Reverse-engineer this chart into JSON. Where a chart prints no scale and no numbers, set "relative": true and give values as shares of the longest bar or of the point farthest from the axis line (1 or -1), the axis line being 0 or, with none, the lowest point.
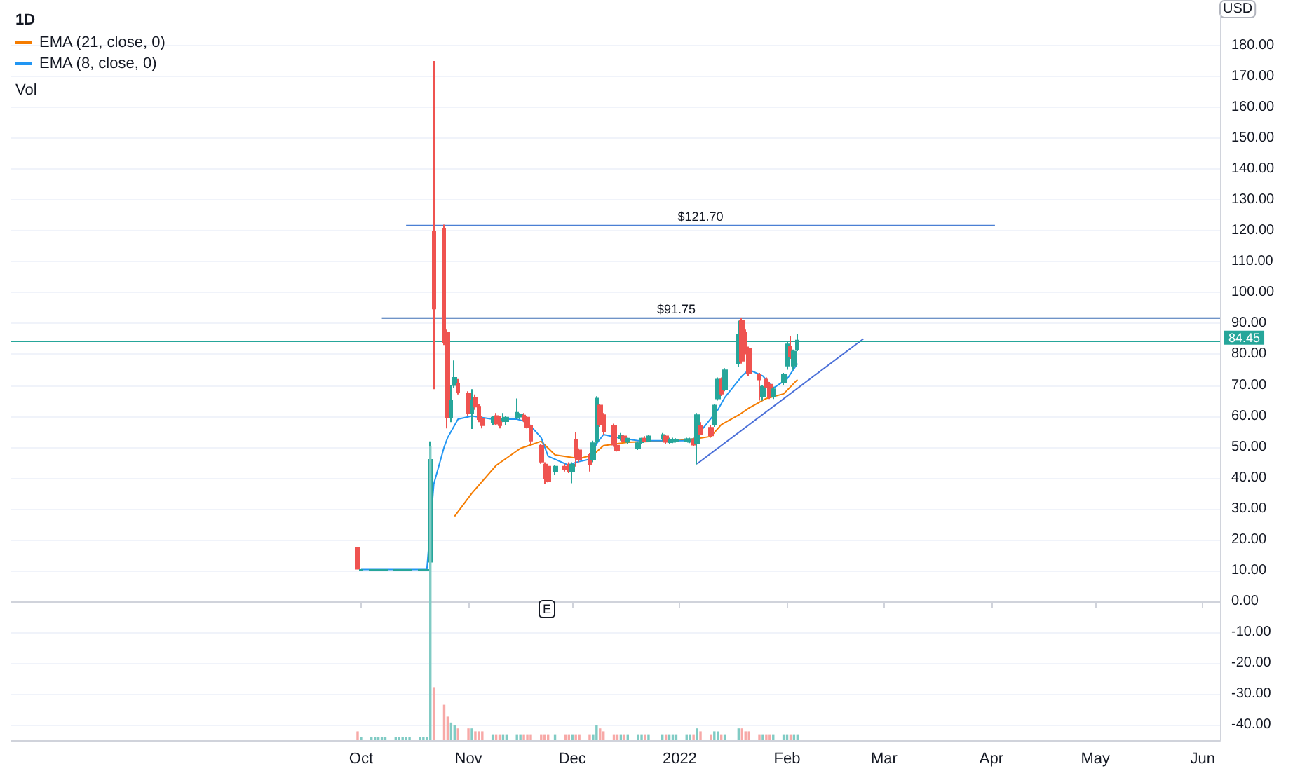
{
  "chart_data": [
    {
      "type": "candlestick",
      "title": "1D",
      "ylabel": "USD",
      "x": [
        "2021-09-30",
        "2021-10-01",
        "2021-10-04",
        "2021-10-05",
        "2021-10-06",
        "2021-10-07",
        "2021-10-08",
        "2021-10-11",
        "2021-10-12",
        "2021-10-13",
        "2021-10-14",
        "2021-10-15",
        "2021-10-18",
        "2021-10-19",
        "2021-10-20",
        "2021-10-21",
        "2021-10-22",
        "2021-10-25",
        "2021-10-26",
        "2021-10-27",
        "2021-10-28",
        "2021-10-29",
        "2021-11-01",
        "2021-11-02",
        "2021-11-03",
        "2021-11-04",
        "2021-11-05",
        "2021-11-08",
        "2021-11-09",
        "2021-11-10",
        "2021-11-11",
        "2021-11-12",
        "2021-11-15",
        "2021-11-16",
        "2021-11-17",
        "2021-11-18",
        "2021-11-19",
        "2021-11-22",
        "2021-11-23",
        "2021-11-24",
        "2021-11-26",
        "2021-11-29",
        "2021-11-30",
        "2021-12-01",
        "2021-12-02",
        "2021-12-03",
        "2021-12-06",
        "2021-12-07",
        "2021-12-08",
        "2021-12-09",
        "2021-12-10",
        "2021-12-13",
        "2021-12-14",
        "2021-12-15",
        "2021-12-16",
        "2021-12-17",
        "2021-12-20",
        "2021-12-21",
        "2021-12-22",
        "2021-12-23",
        "2021-12-27",
        "2021-12-28",
        "2021-12-29",
        "2021-12-30",
        "2021-12-31",
        "2022-01-03",
        "2022-01-04",
        "2022-01-05",
        "2022-01-06",
        "2022-01-07",
        "2022-01-10",
        "2022-01-11",
        "2022-01-12",
        "2022-01-13",
        "2022-01-14",
        "2022-01-18",
        "2022-01-19",
        "2022-01-20",
        "2022-01-21",
        "2022-01-24",
        "2022-01-25",
        "2022-01-26",
        "2022-01-27",
        "2022-01-28",
        "2022-01-31",
        "2022-02-01",
        "2022-02-02",
        "2022-02-03",
        "2022-02-04"
      ],
      "ohlc": [
        [
          17.2,
          17.6,
          10.4,
          10.5
        ],
        [
          10.1,
          10.4,
          10,
          10.2
        ],
        [
          10.1,
          10.4,
          10,
          10.2
        ],
        [
          10.1,
          10.4,
          10,
          10.2
        ],
        [
          10.1,
          10.4,
          10,
          10.2
        ],
        [
          10.1,
          10.4,
          10,
          10.2
        ],
        [
          10.1,
          10.4,
          10,
          10.2
        ],
        [
          10.1,
          10.4,
          10,
          10.2
        ],
        [
          10.1,
          10.4,
          10,
          10.2
        ],
        [
          10.1,
          10.4,
          10,
          10.2
        ],
        [
          10.1,
          10.4,
          10,
          10.2
        ],
        [
          10.1,
          10.4,
          10,
          10.2
        ],
        [
          10.1,
          10.4,
          10,
          10.2
        ],
        [
          10.1,
          10.4,
          10,
          10.2
        ],
        [
          10.1,
          10.4,
          10,
          10.2
        ],
        [
          12.8,
          51.8,
          10,
          45.8
        ],
        [
          119.6,
          175,
          68.7,
          94.8
        ],
        [
          120.5,
          122,
          83,
          83.8
        ],
        [
          87,
          88,
          56,
          59.5
        ],
        [
          59.5,
          70,
          58,
          65
        ],
        [
          70,
          78,
          69,
          72.4
        ],
        [
          70.5,
          72,
          67,
          67.8
        ],
        [
          67.3,
          68,
          60,
          61
        ],
        [
          61,
          68.7,
          55.8,
          64.9
        ],
        [
          66,
          67,
          62,
          63
        ],
        [
          63,
          64,
          58,
          59
        ],
        [
          59,
          60,
          56,
          57
        ],
        [
          58,
          60,
          57,
          59.5
        ],
        [
          60,
          61,
          57,
          57.5
        ],
        [
          59,
          60,
          56,
          57
        ],
        [
          58.5,
          61,
          58,
          59
        ],
        [
          58.3,
          60,
          57,
          59.5
        ],
        [
          59.5,
          65.7,
          59,
          61.1
        ],
        [
          59.8,
          61,
          59,
          60.5
        ],
        [
          60.2,
          61,
          58,
          58.7
        ],
        [
          59.5,
          60,
          56,
          56.5
        ],
        [
          56.7,
          57,
          51,
          52
        ],
        [
          50.4,
          51,
          44.5,
          45.2
        ],
        [
          44.3,
          45,
          38,
          39.7
        ],
        [
          43.6,
          44.5,
          38.5,
          39
        ],
        [
          42,
          44,
          41,
          43.6
        ],
        [
          43.6,
          44.5,
          42,
          42.8
        ],
        [
          44.3,
          45,
          41.5,
          42
        ],
        [
          42,
          45,
          38.2,
          44.3
        ],
        [
          52.3,
          54.9,
          43.6,
          46.6
        ],
        [
          48.9,
          49.5,
          45,
          45.8
        ],
        [
          47.4,
          48,
          42,
          44.3
        ],
        [
          45.8,
          52,
          45,
          51.2
        ],
        [
          51.9,
          66.4,
          51,
          65.7
        ],
        [
          63.4,
          64,
          56.5,
          57.2
        ],
        [
          60.3,
          61,
          54,
          54.9
        ],
        [
          56.8,
          57.5,
          50,
          50.7
        ],
        [
          50.4,
          51,
          48.5,
          48.9
        ],
        [
          52.7,
          54.5,
          52,
          53.7
        ],
        [
          53.4,
          54,
          51.5,
          51.9
        ],
        [
          51.6,
          53,
          51,
          52.7
        ],
        [
          49.6,
          51.5,
          49,
          51.2
        ],
        [
          51.5,
          53,
          51,
          52.7
        ],
        [
          52.7,
          53.5,
          51.5,
          51.9
        ],
        [
          51.9,
          54,
          51.5,
          53.4
        ],
        [
          52.7,
          54.5,
          52,
          53.9
        ],
        [
          53.4,
          54,
          51,
          51.6
        ],
        [
          51.5,
          53,
          51,
          52.4
        ],
        [
          51.6,
          53,
          51.2,
          52.3
        ],
        [
          51.9,
          52.8,
          51.5,
          52.4
        ],
        [
          51.9,
          53,
          51.5,
          52.5
        ],
        [
          51.6,
          53,
          51.2,
          52.5
        ],
        [
          52.3,
          53,
          50.2,
          50.7
        ],
        [
          51.2,
          61,
          44.3,
          60.3
        ],
        [
          56.8,
          58,
          53.8,
          54.2
        ],
        [
          56.2,
          57,
          53,
          53.7
        ],
        [
          57.2,
          64,
          56.5,
          63.4
        ],
        [
          65.7,
          72.5,
          65,
          71.8
        ],
        [
          71.8,
          72.5,
          66.5,
          67.2
        ],
        [
          68.7,
          75.5,
          68,
          74.8
        ],
        [
          77.1,
          90.9,
          76,
          86.3
        ],
        [
          90.9,
          91.75,
          77,
          77.9
        ],
        [
          87.1,
          88,
          80,
          80.9
        ],
        [
          81.7,
          82.5,
          73,
          74
        ],
        [
          73.3,
          74,
          65,
          71.8
        ],
        [
          66.4,
          70,
          65,
          69.5
        ],
        [
          71.8,
          72.5,
          69,
          69.5
        ],
        [
          70.2,
          71,
          65.5,
          66.4
        ],
        [
          66.4,
          69.5,
          65.5,
          68.7
        ],
        [
          71,
          74,
          70,
          73.3
        ],
        [
          76.3,
          84,
          75,
          83.2
        ],
        [
          82.4,
          86,
          78.5,
          79.4
        ],
        [
          76.3,
          81.5,
          75,
          80.9
        ],
        [
          81.7,
          86.5,
          81,
          84.45
        ]
      ],
      "series": [
        {
          "type": "line",
          "name": "EMA (21, close, 0)",
          "color": "#f57c00",
          "x": [
            "2021-10-28",
            "2021-11-02",
            "2021-11-09",
            "2021-11-16",
            "2021-11-22",
            "2021-11-26",
            "2021-12-03",
            "2021-12-07",
            "2021-12-10",
            "2021-12-17",
            "2021-12-31",
            "2022-01-06",
            "2022-01-10",
            "2022-01-13",
            "2022-01-18",
            "2022-01-21",
            "2022-01-26",
            "2022-01-31",
            "2022-02-04"
          ],
          "values": [
            27.5,
            35,
            44,
            49.5,
            51.8,
            47.4,
            46.2,
            47.4,
            50.4,
            51.5,
            52,
            52.7,
            53.4,
            57.2,
            60.3,
            62.6,
            65.7,
            67.2,
            71.8
          ]
        },
        {
          "type": "line",
          "name": "EMA (8, close, 0)",
          "color": "#2196f3",
          "x": [
            "2021-10-01",
            "2021-10-20",
            "2021-10-22",
            "2021-10-25",
            "2021-10-26",
            "2021-10-27",
            "2021-10-29",
            "2021-11-02",
            "2021-11-08",
            "2021-11-15",
            "2021-11-18",
            "2021-11-22",
            "2021-11-24",
            "2021-11-30",
            "2021-12-02",
            "2021-12-06",
            "2021-12-08",
            "2021-12-10",
            "2021-12-14",
            "2021-12-20",
            "2021-12-31",
            "2022-01-05",
            "2022-01-07",
            "2022-01-12",
            "2022-01-14",
            "2022-01-19",
            "2022-01-21",
            "2022-01-25",
            "2022-01-28",
            "2022-02-01",
            "2022-02-04"
          ],
          "values": [
            10.3,
            10.3,
            38,
            50,
            53,
            55,
            59,
            60,
            59,
            59,
            58,
            53,
            47,
            44,
            45,
            46,
            51,
            54,
            53,
            52,
            52,
            52,
            55,
            62,
            66,
            73,
            75,
            73,
            69,
            72,
            77
          ]
        },
        {
          "type": "line",
          "color": "#4a6fd8",
          "x": [
            "2022-01-06",
            "2022-02-23"
          ],
          "values": [
            44.5,
            85
          ]
        },
        {
          "type": "line",
          "color": "#4a7fd4",
          "x": [
            "2021-10-14",
            "2022-04-02"
          ],
          "values": [
            121.7,
            121.7
          ]
        },
        {
          "type": "line",
          "color": "#3f6fb5",
          "x": [
            "2021-10-07",
            "2022-06-06"
          ],
          "values": [
            91.75,
            91.75
          ]
        }
      ],
      "ref_lines": [
        {
          "axis": "y",
          "value": 84.45,
          "label": "84.45",
          "color": "#26a69a"
        }
      ],
      "annotations": [
        {
          "text": "$121.70",
          "x": "2022-01-07",
          "y": 121.7
        },
        {
          "text": "$91.75",
          "x": "2021-12-31",
          "y": 91.75
        },
        "E"
      ],
      "xlim": [
        "2021-06-22",
        "2022-06-06"
      ],
      "xticks": [
        {
          "value": "2021-10-01",
          "label": "Oct"
        },
        {
          "value": "2021-11-01",
          "label": "Nov"
        },
        {
          "value": "2021-12-01",
          "label": "Dec"
        },
        {
          "value": "2022-01-01",
          "label": "2022"
        },
        {
          "value": "2022-02-01",
          "label": "Feb"
        },
        {
          "value": "2022-03-01",
          "label": "Mar"
        },
        {
          "value": "2022-04-01",
          "label": "Apr"
        },
        {
          "value": "2022-05-01",
          "label": "May"
        },
        {
          "value": "2022-06-01",
          "label": "Jun"
        }
      ],
      "ylim": [
        -45,
        190
      ],
      "yticks": [
        {
          "value": -40,
          "label": "-40.00"
        },
        {
          "value": -30,
          "label": "-30.00"
        },
        {
          "value": -20,
          "label": "-20.00"
        },
        {
          "value": -10,
          "label": "-10.00"
        },
        {
          "value": 0,
          "label": "0.00"
        },
        {
          "value": 10,
          "label": "10.00"
        },
        {
          "value": 20,
          "label": "20.00"
        },
        {
          "value": 30,
          "label": "30.00"
        },
        {
          "value": 40,
          "label": "40.00"
        },
        {
          "value": 50,
          "label": "50.00"
        },
        {
          "value": 60,
          "label": "60.00"
        },
        {
          "value": 70,
          "label": "70.00"
        },
        {
          "value": 80,
          "label": "80.00"
        },
        {
          "value": 90,
          "label": "90.00"
        },
        {
          "value": 100,
          "label": "100.00"
        },
        {
          "value": 110,
          "label": "110.00"
        },
        {
          "value": 120,
          "label": "120.00"
        },
        {
          "value": 130,
          "label": "130.00"
        },
        {
          "value": 140,
          "label": "140.00"
        },
        {
          "value": 150,
          "label": "150.00"
        },
        {
          "value": 160,
          "label": "160.00"
        },
        {
          "value": 170,
          "label": "170.00"
        },
        {
          "value": 180,
          "label": "180.00"
        }
      ],
      "grid": "y",
      "legend": "top left"
    },
    {
      "type": "bar",
      "title": "Vol",
      "relative": true,
      "x": [
        "2021-09-30",
        "2021-10-01",
        "2021-10-04",
        "2021-10-05",
        "2021-10-06",
        "2021-10-07",
        "2021-10-08",
        "2021-10-11",
        "2021-10-12",
        "2021-10-13",
        "2021-10-14",
        "2021-10-15",
        "2021-10-18",
        "2021-10-19",
        "2021-10-20",
        "2021-10-21",
        "2021-10-22",
        "2021-10-25",
        "2021-10-26",
        "2021-10-27",
        "2021-10-28",
        "2021-10-29",
        "2021-11-01",
        "2021-11-02",
        "2021-11-03",
        "2021-11-04",
        "2021-11-05",
        "2021-11-08",
        "2021-11-09",
        "2021-11-10",
        "2021-11-11",
        "2021-11-12",
        "2021-11-15",
        "2021-11-16",
        "2021-11-17",
        "2021-11-18",
        "2021-11-19",
        "2021-11-22",
        "2021-11-23",
        "2021-11-24",
        "2021-11-26",
        "2021-11-29",
        "2021-11-30",
        "2021-12-01",
        "2021-12-02",
        "2021-12-03",
        "2021-12-06",
        "2021-12-07",
        "2021-12-08",
        "2021-12-09",
        "2021-12-10",
        "2021-12-13",
        "2021-12-14",
        "2021-12-15",
        "2021-12-16",
        "2021-12-17",
        "2021-12-20",
        "2021-12-21",
        "2021-12-22",
        "2021-12-23",
        "2021-12-27",
        "2021-12-28",
        "2021-12-29",
        "2021-12-30",
        "2021-12-31",
        "2022-01-03",
        "2022-01-04",
        "2022-01-05",
        "2022-01-06",
        "2022-01-07",
        "2022-01-10",
        "2022-01-11",
        "2022-01-12",
        "2022-01-13",
        "2022-01-14",
        "2022-01-18",
        "2022-01-19",
        "2022-01-20",
        "2022-01-21",
        "2022-01-24",
        "2022-01-25",
        "2022-01-26",
        "2022-01-27",
        "2022-01-28",
        "2022-01-31",
        "2022-02-01",
        "2022-02-02",
        "2022-02-03",
        "2022-02-04"
      ],
      "values": [
        0.03,
        0.01,
        0.01,
        0.01,
        0.01,
        0.01,
        0.01,
        0.01,
        0.01,
        0.01,
        0.01,
        0.01,
        0.01,
        0.01,
        0.01,
        1,
        0.18,
        0.12,
        0.08,
        0.06,
        0.05,
        0.04,
        0.04,
        0.04,
        0.03,
        0.03,
        0.03,
        0.02,
        0.02,
        0.02,
        0.02,
        0.02,
        0.02,
        0.02,
        0.02,
        0.02,
        0.02,
        0.02,
        0.02,
        0.02,
        0.02,
        0.02,
        0.02,
        0.02,
        0.02,
        0.02,
        0.02,
        0.02,
        0.05,
        0.04,
        0.03,
        0.02,
        0.02,
        0.02,
        0.02,
        0.02,
        0.02,
        0.02,
        0.02,
        0.02,
        0.02,
        0.02,
        0.02,
        0.02,
        0.02,
        0.02,
        0.02,
        0.02,
        0.04,
        0.03,
        0.02,
        0.03,
        0.03,
        0.02,
        0.02,
        0.04,
        0.04,
        0.03,
        0.03,
        0.02,
        0.02,
        0.02,
        0.02,
        0.02,
        0.02,
        0.02,
        0.02,
        0.02,
        0.02
      ],
      "colors": [
        "#f7a9a7",
        "#80cbc4",
        "#80cbc4",
        "#80cbc4",
        "#80cbc4",
        "#80cbc4",
        "#80cbc4",
        "#80cbc4",
        "#80cbc4",
        "#80cbc4",
        "#80cbc4",
        "#80cbc4",
        "#80cbc4",
        "#80cbc4",
        "#80cbc4",
        "#80cbc4",
        "#f7a9a7",
        "#f7a9a7",
        "#f7a9a7",
        "#80cbc4",
        "#80cbc4",
        "#f7a9a7",
        "#f7a9a7",
        "#80cbc4",
        "#f7a9a7",
        "#f7a9a7",
        "#f7a9a7",
        "#80cbc4",
        "#f7a9a7",
        "#f7a9a7",
        "#80cbc4",
        "#80cbc4",
        "#80cbc4",
        "#80cbc4",
        "#f7a9a7",
        "#f7a9a7",
        "#f7a9a7",
        "#f7a9a7",
        "#f7a9a7",
        "#f7a9a7",
        "#80cbc4",
        "#f7a9a7",
        "#f7a9a7",
        "#80cbc4",
        "#f7a9a7",
        "#f7a9a7",
        "#f7a9a7",
        "#80cbc4",
        "#80cbc4",
        "#f7a9a7",
        "#f7a9a7",
        "#f7a9a7",
        "#f7a9a7",
        "#80cbc4",
        "#f7a9a7",
        "#80cbc4",
        "#80cbc4",
        "#80cbc4",
        "#f7a9a7",
        "#80cbc4",
        "#80cbc4",
        "#f7a9a7",
        "#80cbc4",
        "#80cbc4",
        "#80cbc4",
        "#80cbc4",
        "#80cbc4",
        "#f7a9a7",
        "#80cbc4",
        "#f7a9a7",
        "#f7a9a7",
        "#80cbc4",
        "#80cbc4",
        "#f7a9a7",
        "#80cbc4",
        "#80cbc4",
        "#f7a9a7",
        "#f7a9a7",
        "#f7a9a7",
        "#f7a9a7",
        "#80cbc4",
        "#f7a9a7",
        "#f7a9a7",
        "#80cbc4",
        "#80cbc4",
        "#80cbc4",
        "#f7a9a7",
        "#80cbc4",
        "#80cbc4"
      ],
      "xlim": [
        "2021-06-22",
        "2022-06-06"
      ]
    }
  ]
}
